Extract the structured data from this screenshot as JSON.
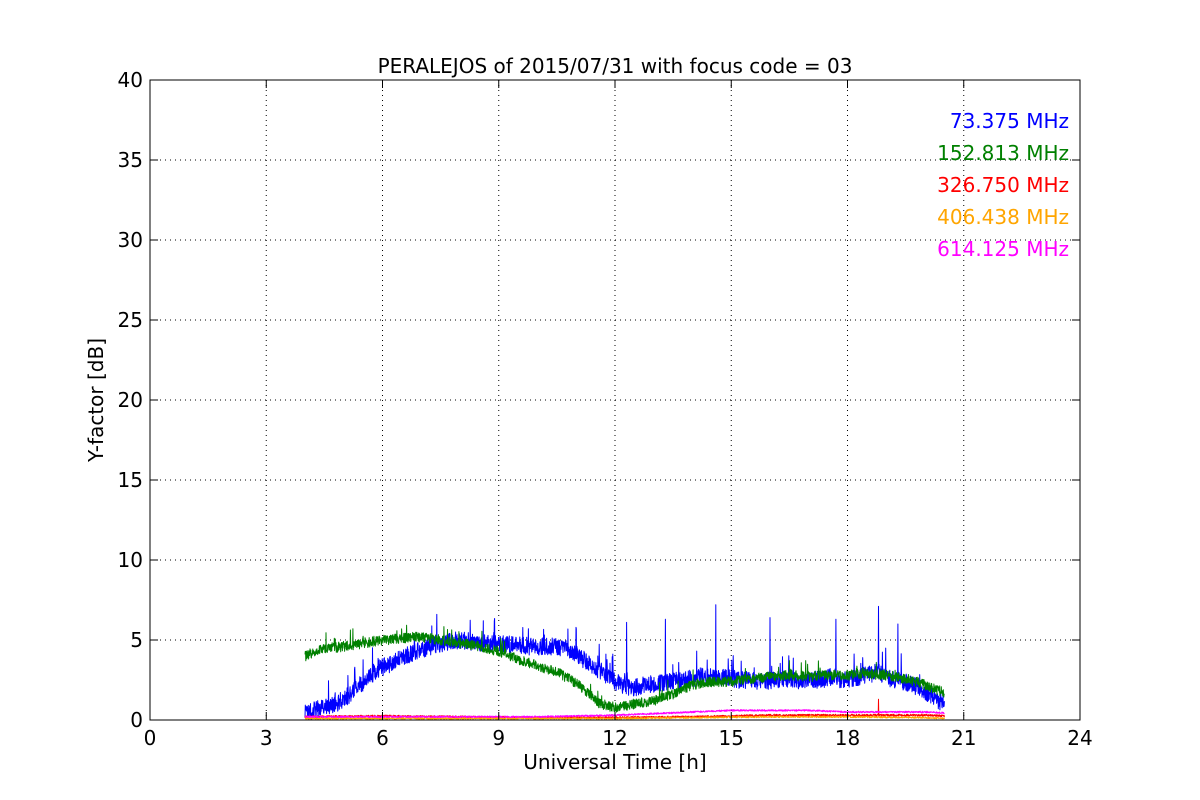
{
  "chart_data": {
    "type": "line",
    "title": "PERALEJOS of 2015/07/31 with focus code = 03",
    "xlabel": "Universal Time [h]",
    "ylabel": "Y-factor [dB]",
    "xlim": [
      0,
      24
    ],
    "ylim": [
      0,
      40
    ],
    "xticks": [
      0,
      3,
      6,
      9,
      12,
      15,
      18,
      21,
      24
    ],
    "yticks": [
      0,
      5,
      10,
      15,
      20,
      25,
      30,
      35,
      40
    ],
    "grid": true,
    "legend_placement": "top-right",
    "series": [
      {
        "name": "73.375 MHz",
        "color": "#0000ff",
        "x": [
          4.0,
          4.2,
          4.5,
          4.8,
          5.0,
          5.3,
          5.6,
          5.9,
          6.2,
          6.5,
          6.8,
          7.1,
          7.4,
          7.7,
          8.0,
          8.3,
          8.6,
          8.9,
          9.2,
          9.5,
          9.8,
          10.1,
          10.4,
          10.7,
          11.0,
          11.3,
          11.6,
          11.9,
          12.2,
          12.5,
          12.8,
          13.1,
          13.4,
          13.7,
          14.0,
          14.3,
          14.6,
          14.9,
          15.2,
          15.5,
          15.8,
          16.1,
          16.4,
          16.7,
          17.0,
          17.3,
          17.6,
          17.9,
          18.2,
          18.5,
          18.8,
          19.1,
          19.4,
          19.7,
          20.0,
          20.3,
          20.5
        ],
        "y": [
          0.4,
          0.6,
          0.8,
          1.0,
          1.3,
          1.9,
          2.6,
          3.2,
          3.5,
          3.9,
          4.2,
          4.5,
          4.7,
          4.9,
          5.0,
          4.9,
          4.8,
          4.8,
          4.7,
          4.7,
          4.6,
          4.6,
          4.6,
          4.5,
          4.1,
          3.6,
          3.1,
          2.6,
          2.1,
          2.0,
          2.2,
          2.3,
          2.4,
          2.5,
          2.6,
          2.8,
          2.6,
          2.7,
          2.5,
          2.5,
          2.4,
          2.5,
          2.6,
          2.4,
          2.6,
          2.5,
          2.7,
          2.5,
          2.6,
          2.8,
          3.0,
          2.6,
          2.4,
          2.2,
          1.8,
          1.3,
          1.0
        ],
        "noise": 0.55,
        "spikes": [
          [
            7.4,
            6.6
          ],
          [
            8.6,
            6.2
          ],
          [
            12.3,
            6.1
          ],
          [
            13.3,
            6.3
          ],
          [
            14.6,
            7.2
          ],
          [
            16.0,
            6.4
          ],
          [
            17.7,
            6.3
          ],
          [
            18.8,
            7.1
          ],
          [
            19.3,
            6.0
          ]
        ]
      },
      {
        "name": "152.813 MHz",
        "color": "#008000",
        "x": [
          4.0,
          4.3,
          4.6,
          5.0,
          5.5,
          6.0,
          6.5,
          7.0,
          7.5,
          8.0,
          8.5,
          9.0,
          9.5,
          10.0,
          10.5,
          11.0,
          11.3,
          11.6,
          12.0,
          12.5,
          13.0,
          13.5,
          14.0,
          14.5,
          15.0,
          15.5,
          16.0,
          16.5,
          17.0,
          17.5,
          18.0,
          18.5,
          19.0,
          19.5,
          20.0,
          20.5
        ],
        "y": [
          4.0,
          4.3,
          4.5,
          4.6,
          4.8,
          5.0,
          5.1,
          5.2,
          5.0,
          4.8,
          4.6,
          4.3,
          3.8,
          3.4,
          3.0,
          2.3,
          1.7,
          1.0,
          0.8,
          1.0,
          1.2,
          1.6,
          2.2,
          2.4,
          2.4,
          2.6,
          2.7,
          2.8,
          2.7,
          2.8,
          2.8,
          2.9,
          2.8,
          2.6,
          2.2,
          1.7
        ],
        "noise": 0.32,
        "spikes": []
      },
      {
        "name": "326.750 MHz",
        "color": "#ff0000",
        "x": [
          4.0,
          6.0,
          8.0,
          10.0,
          12.0,
          14.0,
          16.0,
          18.0,
          20.0,
          20.5
        ],
        "y": [
          0.2,
          0.25,
          0.2,
          0.15,
          0.15,
          0.2,
          0.3,
          0.3,
          0.3,
          0.25
        ],
        "noise": 0.06,
        "spikes": [
          [
            18.8,
            1.3
          ]
        ]
      },
      {
        "name": "406.438 MHz",
        "color": "#ffa500",
        "x": [
          4.0,
          6.0,
          8.0,
          10.0,
          12.0,
          14.0,
          16.0,
          18.0,
          20.0,
          20.5
        ],
        "y": [
          0.1,
          0.1,
          0.1,
          0.1,
          0.1,
          0.15,
          0.2,
          0.2,
          0.15,
          0.1
        ],
        "noise": 0.05,
        "spikes": []
      },
      {
        "name": "614.125 MHz",
        "color": "#ff00ff",
        "x": [
          4.0,
          6.0,
          8.0,
          10.0,
          12.0,
          13.0,
          14.0,
          15.0,
          16.0,
          17.0,
          18.0,
          19.0,
          20.0,
          20.5
        ],
        "y": [
          0.2,
          0.2,
          0.2,
          0.2,
          0.3,
          0.4,
          0.5,
          0.6,
          0.6,
          0.6,
          0.5,
          0.5,
          0.5,
          0.45
        ],
        "noise": 0.05,
        "spikes": []
      }
    ]
  }
}
